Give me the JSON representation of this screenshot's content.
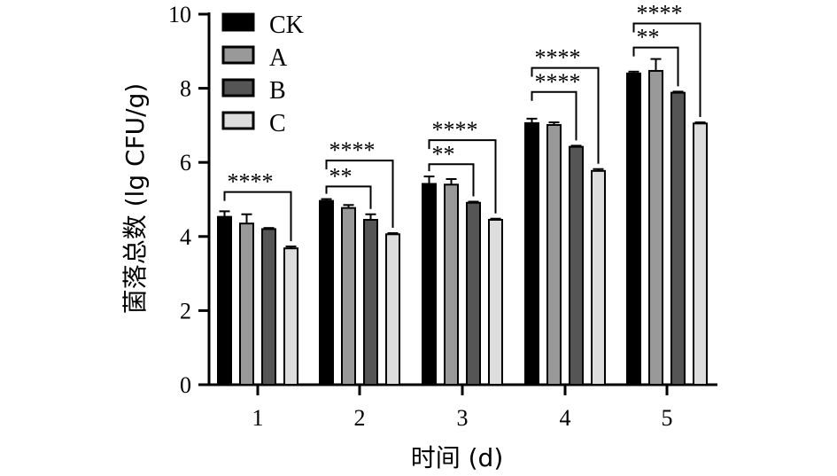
{
  "chart_data": {
    "type": "bar",
    "title": "",
    "xlabel": "时间 (d)",
    "ylabel": "菌落总数 (lg CFU/g)",
    "ylim": [
      0,
      10
    ],
    "yticks": [
      0,
      2,
      4,
      6,
      8,
      10
    ],
    "categories": [
      "1",
      "2",
      "3",
      "4",
      "5"
    ],
    "legend_position": "top-left",
    "series": [
      {
        "name": "CK",
        "color": "#000000",
        "values": [
          4.53,
          4.96,
          5.42,
          7.06,
          8.4
        ],
        "errors": [
          0.15,
          0.05,
          0.2,
          0.12,
          0.05
        ]
      },
      {
        "name": "A",
        "color": "#999999",
        "values": [
          4.35,
          4.77,
          5.4,
          7.01,
          8.47
        ],
        "errors": [
          0.25,
          0.08,
          0.15,
          0.07,
          0.32
        ]
      },
      {
        "name": "B",
        "color": "#555555",
        "values": [
          4.2,
          4.45,
          4.91,
          6.42,
          7.88
        ],
        "errors": [
          0.03,
          0.15,
          0.03,
          0.03,
          0.03
        ]
      },
      {
        "name": "C",
        "color": "#dddddd",
        "values": [
          3.68,
          4.06,
          4.45,
          5.77,
          7.05
        ],
        "errors": [
          0.05,
          0.03,
          0.03,
          0.05,
          0.03
        ]
      }
    ],
    "significance": [
      {
        "category": 0,
        "from": 0,
        "to": 3,
        "y": 5.2,
        "label": "****"
      },
      {
        "category": 1,
        "from": 0,
        "to": 2,
        "y": 5.35,
        "label": "**"
      },
      {
        "category": 1,
        "from": 0,
        "to": 3,
        "y": 6.05,
        "label": "****"
      },
      {
        "category": 2,
        "from": 0,
        "to": 2,
        "y": 5.95,
        "label": "**"
      },
      {
        "category": 2,
        "from": 0,
        "to": 3,
        "y": 6.6,
        "label": "****"
      },
      {
        "category": 3,
        "from": 0,
        "to": 2,
        "y": 7.9,
        "label": "****"
      },
      {
        "category": 3,
        "from": 0,
        "to": 3,
        "y": 8.55,
        "label": "****"
      },
      {
        "category": 4,
        "from": 0,
        "to": 2,
        "y": 9.1,
        "label": "**"
      },
      {
        "category": 4,
        "from": 0,
        "to": 3,
        "y": 9.75,
        "label": "****"
      }
    ]
  }
}
